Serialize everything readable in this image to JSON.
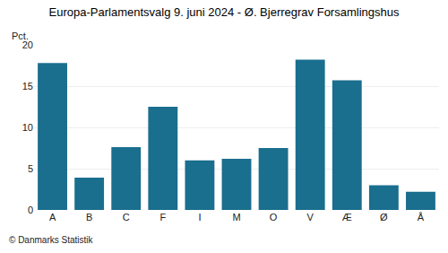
{
  "chart_data": {
    "type": "bar",
    "title": "Europa-Parlamentsvalg 9. juni 2024 - Ø. Bjerregrav Forsamlingshus",
    "ylabel": "Pct.",
    "annotations": [
      "© Danmarks Statistik"
    ],
    "categories": [
      "A",
      "B",
      "C",
      "F",
      "I",
      "M",
      "O",
      "V",
      "Æ",
      "Ø",
      "Å"
    ],
    "values": [
      17.8,
      3.9,
      7.6,
      12.5,
      6.0,
      6.2,
      7.5,
      18.2,
      15.7,
      3.0,
      2.2
    ],
    "color": "#1a6e8e",
    "ylim": [
      0,
      20
    ],
    "yticks": [
      0,
      5,
      10,
      15,
      20
    ],
    "grid": true
  }
}
